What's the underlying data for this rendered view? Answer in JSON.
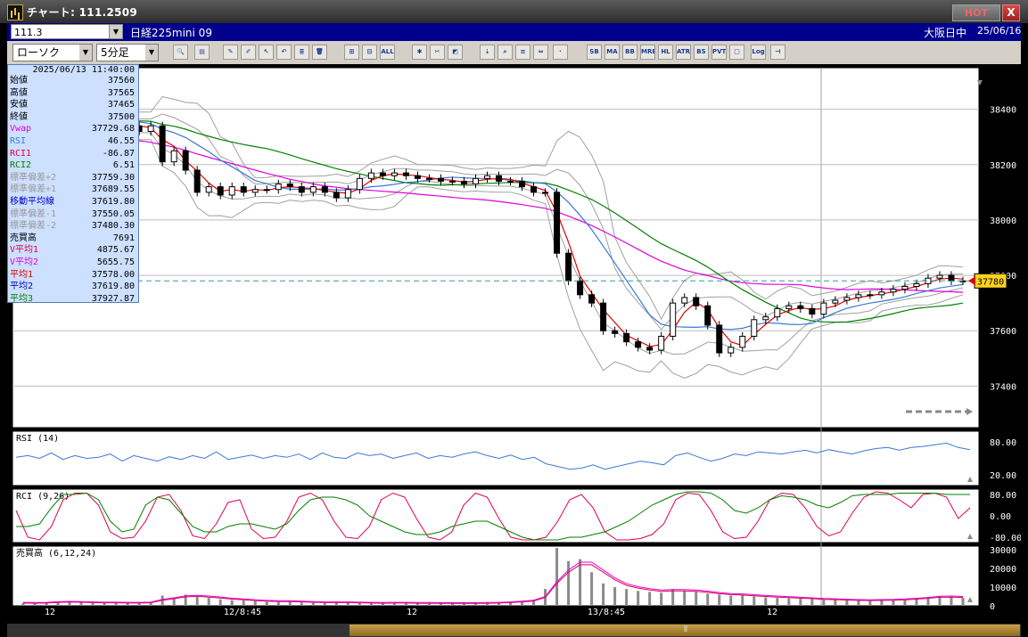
{
  "window": {
    "title": "チャート: 111.2509",
    "hot_label": "HOT",
    "close_label": "X"
  },
  "infobar": {
    "code": "111.3",
    "instrument": "日経225mini 09",
    "session": "大阪日中",
    "date": "25/06/16"
  },
  "toolbar": {
    "chart_type": "ローソク",
    "timeframe": "5分足",
    "buttons": [
      {
        "name": "zoom-icon",
        "label": "🔍"
      },
      {
        "name": "panel-icon",
        "label": "▤"
      },
      {
        "name": "pen-icon",
        "label": "✎"
      },
      {
        "name": "brush-icon",
        "label": "✐"
      },
      {
        "name": "cursor-icon",
        "label": "↖"
      },
      {
        "name": "undo-icon",
        "label": "↶"
      },
      {
        "name": "list-icon",
        "label": "≣"
      },
      {
        "name": "trash-icon",
        "label": "🗑"
      },
      {
        "name": "candle-a-icon",
        "label": "⊞"
      },
      {
        "name": "candle-b-icon",
        "label": "⊟"
      },
      {
        "name": "all-button",
        "label": "ALL"
      },
      {
        "name": "settings-icon",
        "label": "✱"
      },
      {
        "name": "tool-icon",
        "label": "✂"
      },
      {
        "name": "palette-icon",
        "label": "◩"
      },
      {
        "name": "order-icon",
        "label": "⇣"
      },
      {
        "name": "search2-icon",
        "label": "⌕"
      },
      {
        "name": "bars-icon",
        "label": "≡"
      },
      {
        "name": "range-icon",
        "label": "⇔"
      },
      {
        "name": "blank-icon",
        "label": "·"
      },
      {
        "name": "sb-button",
        "label": "SB"
      },
      {
        "name": "ma-button",
        "label": "MA"
      },
      {
        "name": "bb-button",
        "label": "BB"
      },
      {
        "name": "mre-button",
        "label": "MRE"
      },
      {
        "name": "hl-button",
        "label": "HL"
      },
      {
        "name": "atr-button",
        "label": "ATR"
      },
      {
        "name": "bs-button",
        "label": "BS"
      },
      {
        "name": "pvt-button",
        "label": "PVT"
      },
      {
        "name": "box-icon",
        "label": "▢"
      },
      {
        "name": "log-button",
        "label": "Log"
      },
      {
        "name": "split-icon",
        "label": "⊣"
      }
    ]
  },
  "data_window": {
    "timestamp": "2025/06/13 11:40:00",
    "rows": [
      {
        "key": "始値",
        "value": "37560",
        "color": "#000000"
      },
      {
        "key": "高値",
        "value": "37565",
        "color": "#000000"
      },
      {
        "key": "安値",
        "value": "37465",
        "color": "#000000"
      },
      {
        "key": "終値",
        "value": "37500",
        "color": "#000000"
      },
      {
        "key": "Vwap",
        "value": "37729.68",
        "color": "#e000e0"
      },
      {
        "key": "RSI",
        "value": "46.55",
        "color": "#3a78d8"
      },
      {
        "key": "RCI1",
        "value": "-86.87",
        "color": "#e0004a"
      },
      {
        "key": "RCI2",
        "value": "6.51",
        "color": "#008000"
      },
      {
        "key": "標準偏差+2",
        "value": "37759.30",
        "color": "#9a9a9a"
      },
      {
        "key": "標準偏差+1",
        "value": "37689.55",
        "color": "#9a9a9a"
      },
      {
        "key": "移動平均線",
        "value": "37619.80",
        "color": "#0000c8"
      },
      {
        "key": "標準偏差-1",
        "value": "37550.05",
        "color": "#9a9a9a"
      },
      {
        "key": "標準偏差-2",
        "value": "37480.30",
        "color": "#9a9a9a"
      },
      {
        "key": "売買高",
        "value": "7691",
        "color": "#000000"
      },
      {
        "key": "V平均1",
        "value": "4875.67",
        "color": "#e0004a"
      },
      {
        "key": "V平均2",
        "value": "5655.75",
        "color": "#e000e0"
      },
      {
        "key": "平均1",
        "value": "37578.00",
        "color": "#e00000"
      },
      {
        "key": "平均2",
        "value": "37619.80",
        "color": "#0000c8"
      },
      {
        "key": "平均3",
        "value": "37927.87",
        "color": "#008000"
      }
    ]
  },
  "chart_data": [
    {
      "type": "candlestick",
      "title": "",
      "ylim": [
        37250,
        38550
      ],
      "y_ticks": [
        "38400",
        "38200",
        "38000",
        "37800",
        "37600",
        "37400"
      ],
      "current_price": "37780",
      "current_value": 37780,
      "x_labels": [
        "12",
        "12/8:45",
        "12",
        "13/8:45",
        "12"
      ],
      "colors": {
        "ma_short": "#e00000",
        "ma_mid": "#3a78d8",
        "ma_long": "#008000",
        "vwap": "#e000e0",
        "bands": "#a0a0a0",
        "cursor": "#2aa0a0"
      },
      "close": [
        38370,
        38380,
        38400,
        38390,
        38360,
        38340,
        38330,
        38350,
        38360,
        38340,
        38320,
        38340,
        38210,
        38250,
        38180,
        38100,
        38120,
        38090,
        38120,
        38100,
        38110,
        38110,
        38130,
        38120,
        38100,
        38120,
        38100,
        38080,
        38110,
        38150,
        38170,
        38160,
        38170,
        38160,
        38150,
        38150,
        38140,
        38140,
        38130,
        38150,
        38160,
        38140,
        38140,
        38120,
        38100,
        38100,
        37880,
        37780,
        37730,
        37700,
        37600,
        37590,
        37560,
        37540,
        37530,
        37580,
        37700,
        37720,
        37690,
        37620,
        37520,
        37540,
        37580,
        37640,
        37650,
        37680,
        37690,
        37680,
        37660,
        37700,
        37710,
        37720,
        37730,
        37730,
        37740,
        37750,
        37760,
        37770,
        37790,
        37800,
        37780,
        37780
      ],
      "vwap_start": 38320,
      "vwap_end": 37730
    },
    {
      "type": "line",
      "title": "RSI (14)",
      "ylim": [
        0,
        100
      ],
      "y_ticks": [
        "80.00",
        "20.00"
      ],
      "series": [
        {
          "name": "RSI",
          "values": [
            52,
            55,
            50,
            60,
            48,
            55,
            50,
            52,
            58,
            45,
            55,
            50,
            45,
            53,
            48,
            55,
            50,
            62,
            48,
            52,
            56,
            50,
            55,
            52,
            58,
            48,
            60,
            52,
            50,
            60,
            55,
            58,
            50,
            55,
            60,
            50,
            55,
            52,
            58,
            62,
            55,
            50,
            56,
            48,
            52,
            40,
            35,
            30,
            32,
            38,
            30,
            35,
            40,
            45,
            42,
            38,
            55,
            60,
            52,
            45,
            50,
            58,
            55,
            62,
            60,
            58,
            62,
            65,
            60,
            66,
            62,
            58,
            64,
            68,
            70,
            65,
            70,
            72,
            75,
            78,
            70,
            66
          ]
        }
      ]
    },
    {
      "type": "line",
      "title": "RCI (9,26)",
      "ylim": [
        -100,
        100
      ],
      "y_ticks": [
        "80.00",
        "0.00",
        "-80.00"
      ],
      "series": [
        {
          "name": "RCI1",
          "values": [
            20,
            -80,
            -90,
            -40,
            60,
            85,
            85,
            40,
            -60,
            -85,
            -80,
            -20,
            70,
            80,
            20,
            -75,
            -85,
            -30,
            50,
            60,
            -50,
            -85,
            -80,
            -20,
            70,
            85,
            60,
            -20,
            -80,
            -85,
            -40,
            60,
            85,
            70,
            -10,
            -80,
            -90,
            -60,
            40,
            85,
            70,
            -10,
            -80,
            -90,
            -90,
            -80,
            -20,
            60,
            80,
            30,
            -60,
            -90,
            -90,
            -85,
            -70,
            -30,
            60,
            85,
            80,
            20,
            -60,
            -85,
            -80,
            -20,
            60,
            85,
            80,
            30,
            -40,
            -75,
            -60,
            10,
            70,
            90,
            85,
            60,
            30,
            80,
            85,
            70,
            -10,
            30
          ]
        },
        {
          "name": "RCI2",
          "values": [
            -40,
            -40,
            -30,
            30,
            80,
            80,
            85,
            60,
            -20,
            -60,
            -50,
            40,
            70,
            60,
            10,
            -40,
            -60,
            -60,
            -40,
            -30,
            -30,
            -40,
            -50,
            -30,
            20,
            60,
            70,
            70,
            60,
            40,
            0,
            -20,
            -40,
            -60,
            -70,
            -70,
            -60,
            -40,
            -30,
            -20,
            -20,
            -40,
            -60,
            -80,
            -90,
            -90,
            -90,
            -80,
            -80,
            -70,
            -60,
            -40,
            -20,
            10,
            40,
            60,
            80,
            90,
            90,
            85,
            60,
            20,
            10,
            30,
            60,
            75,
            70,
            60,
            40,
            30,
            50,
            75,
            80,
            80,
            80,
            85,
            85,
            85,
            85,
            80,
            80,
            80
          ]
        }
      ]
    },
    {
      "type": "bar",
      "title": "売買高 (6,12,24)",
      "ylim": [
        0,
        32000
      ],
      "y_ticks": [
        "30000",
        "20000",
        "10000",
        "0"
      ],
      "values": [
        1500,
        1200,
        1800,
        2200,
        2000,
        1800,
        1600,
        1400,
        1700,
        1500,
        1400,
        1600,
        5500,
        4500,
        6000,
        4800,
        4200,
        3500,
        3000,
        2800,
        2500,
        2200,
        2000,
        2300,
        1800,
        1600,
        1500,
        1800,
        1700,
        1500,
        1400,
        1300,
        1600,
        1400,
        1300,
        1500,
        1200,
        1300,
        1400,
        1200,
        1600,
        1800,
        2000,
        2600,
        3200,
        9000,
        31000,
        24000,
        25000,
        18000,
        12000,
        10000,
        9000,
        8000,
        7500,
        7000,
        9000,
        8000,
        7500,
        6500,
        6000,
        5500,
        6000,
        5000,
        4500,
        4200,
        4000,
        3800,
        3500,
        3300,
        3200,
        3000,
        2800,
        2600,
        2900,
        3100,
        3400,
        4200,
        4800,
        5200,
        4600,
        4300
      ],
      "series": [
        {
          "name": "V平均1",
          "values": [
            1500,
            1400,
            1500,
            1800,
            2000,
            1900,
            1700,
            1600,
            1600,
            1500,
            1500,
            1600,
            3000,
            3800,
            4800,
            5100,
            4700,
            4200,
            3600,
            3200,
            2800,
            2500,
            2300,
            2300,
            2100,
            1900,
            1700,
            1700,
            1700,
            1600,
            1500,
            1400,
            1500,
            1500,
            1400,
            1400,
            1300,
            1300,
            1300,
            1300,
            1400,
            1500,
            1700,
            2100,
            2600,
            4500,
            12000,
            18000,
            22000,
            22000,
            18000,
            14000,
            11000,
            9500,
            8500,
            7800,
            8000,
            8000,
            7800,
            7200,
            6500,
            6000,
            5800,
            5400,
            5000,
            4700,
            4400,
            4100,
            3800,
            3500,
            3300,
            3100,
            2900,
            2800,
            2900,
            3000,
            3200,
            3600,
            4000,
            4600,
            4700,
            4500
          ]
        }
      ]
    }
  ],
  "scrollbar": {
    "grip": "⦀"
  }
}
